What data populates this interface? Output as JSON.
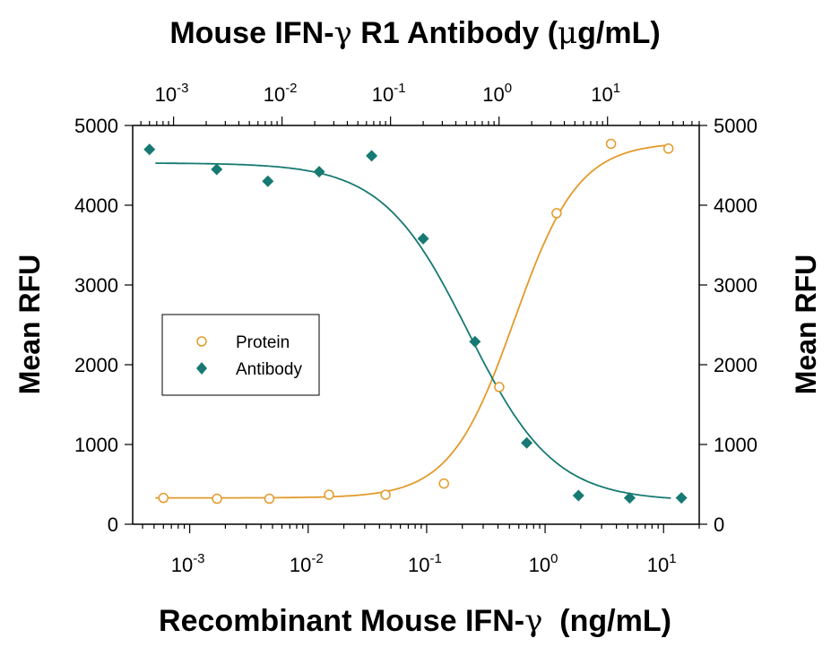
{
  "chart_data": {
    "type": "scatter",
    "title": "",
    "top_axis": {
      "label_main": "Mouse IFN-",
      "label_symbol": "γ",
      "label_rest": " R1 Antibody (",
      "label_unit_symbol": "μ",
      "label_unit_rest": "g/mL)",
      "scale": "log",
      "range": [
        0.00042,
        70
      ],
      "tick_exponents": [
        "-3",
        "-2",
        "-1",
        "0",
        "1"
      ]
    },
    "bottom_axis": {
      "label_main": "Recombinant Mouse IFN-",
      "label_symbol": "γ",
      "label_rest": "  (ng/mL)",
      "scale": "log",
      "range": [
        0.00033,
        20
      ],
      "tick_exponents": [
        "-3",
        "-2",
        "-1",
        "0",
        "1"
      ]
    },
    "left_axis": {
      "label": "Mean RFU",
      "range": [
        0,
        5000
      ],
      "ticks": [
        "0",
        "1000",
        "2000",
        "3000",
        "4000",
        "5000"
      ]
    },
    "right_axis": {
      "label": "Mean RFU",
      "range": [
        0,
        5000
      ],
      "ticks": [
        "0",
        "1000",
        "2000",
        "3000",
        "4000",
        "5000"
      ]
    },
    "legend": {
      "placement": "middle-left"
    },
    "series": [
      {
        "name": "Protein",
        "axis": "bottom",
        "marker": "open-circle",
        "color": "#E39A2B",
        "x": [
          0.0006,
          0.0017,
          0.0047,
          0.015,
          0.045,
          0.14,
          0.41,
          1.25,
          3.6,
          11
        ],
        "y": [
          330,
          320,
          320,
          370,
          370,
          510,
          1720,
          3900,
          4770,
          4710
        ],
        "fit": {
          "bottom": 330,
          "top": 4790,
          "ec50": 0.55,
          "hill": 1.6
        }
      },
      {
        "name": "Antibody",
        "axis": "top",
        "marker": "filled-diamond",
        "color": "#177A72",
        "x": [
          0.0006,
          0.0025,
          0.0074,
          0.022,
          0.067,
          0.2,
          0.6,
          1.8,
          5.4,
          16,
          48
        ],
        "y": [
          4700,
          4450,
          4300,
          4420,
          4620,
          3580,
          2290,
          1020,
          360,
          330,
          330
        ],
        "fit": {
          "bottom": 290,
          "top": 4530,
          "ec50": 0.52,
          "hill": -1.1
        }
      }
    ]
  }
}
